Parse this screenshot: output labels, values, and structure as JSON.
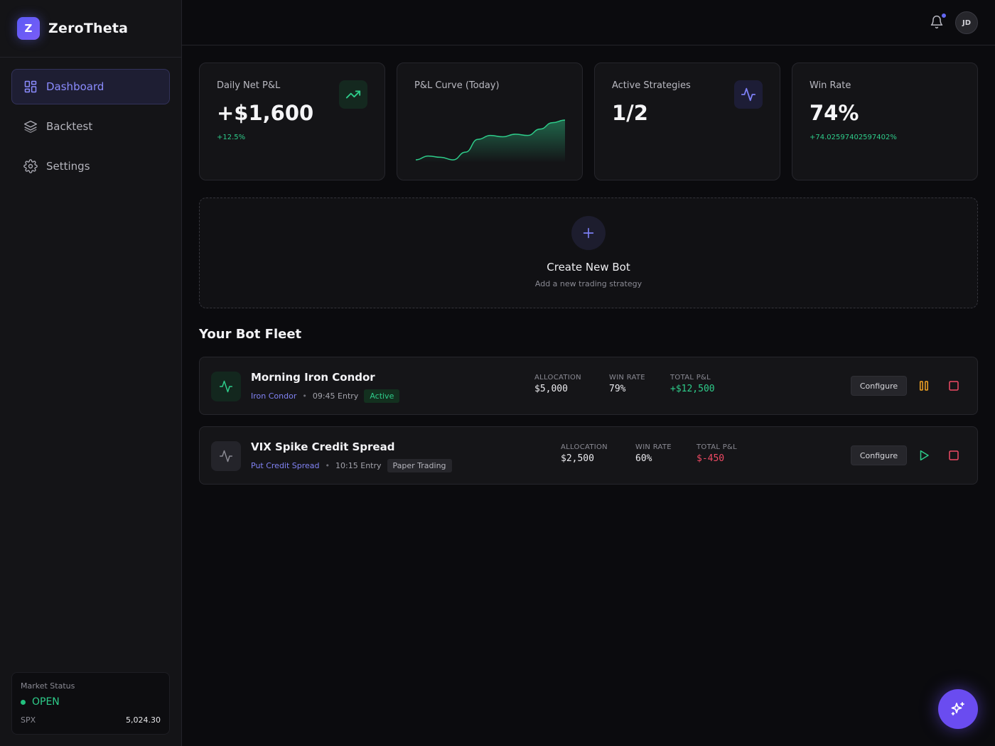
{
  "brand": {
    "logo_letter": "Z",
    "name": "ZeroTheta"
  },
  "nav": [
    {
      "label": "Dashboard",
      "icon": "dashboard-icon",
      "active": true
    },
    {
      "label": "Backtest",
      "icon": "layers-icon",
      "active": false
    },
    {
      "label": "Settings",
      "icon": "gear-icon",
      "active": false
    }
  ],
  "market": {
    "label": "Market Status",
    "status": "OPEN",
    "symbol": "SPX",
    "price": "5,024.30"
  },
  "header": {
    "avatar": "JD",
    "has_notification": true
  },
  "stats": {
    "daily_pnl": {
      "title": "Daily Net P&L",
      "value": "+$1,600",
      "change": "+12.5%",
      "icon": "trending-up-icon"
    },
    "pnl_curve": {
      "title": "P&L Curve (Today)",
      "sparkline": [
        12,
        15,
        14,
        12,
        18,
        28,
        31,
        30,
        32,
        31,
        36,
        41,
        43
      ]
    },
    "active_strategies": {
      "title": "Active Strategies",
      "value": "1/2",
      "icon": "activity-icon"
    },
    "win_rate": {
      "title": "Win Rate",
      "value": "74%",
      "change": "+74.02597402597402%"
    }
  },
  "create_bot": {
    "title": "Create New Bot",
    "subtitle": "Add a new trading strategy"
  },
  "fleet": {
    "title": "Your Bot Fleet",
    "bots": [
      {
        "name": "Morning Iron Condor",
        "strategy": "Iron Condor",
        "entry": "09:45 Entry",
        "status": "Active",
        "allocation_label": "ALLOCATION",
        "allocation": "$5,000",
        "winrate_label": "WIN RATE",
        "winrate": "79%",
        "pnl_label": "TOTAL P&L",
        "pnl": "+$12,500",
        "configure": "Configure"
      },
      {
        "name": "VIX Spike Credit Spread",
        "strategy": "Put Credit Spread",
        "entry": "10:15 Entry",
        "status": "Paper Trading",
        "allocation_label": "ALLOCATION",
        "allocation": "$2,500",
        "winrate_label": "WIN RATE",
        "winrate": "60%",
        "pnl_label": "TOTAL P&L",
        "pnl": "$-450",
        "configure": "Configure"
      }
    ]
  },
  "colors": {
    "accent": "#6366f1",
    "positive": "#2ecc8a",
    "negative": "#f04a64",
    "warning": "#f5a524"
  }
}
